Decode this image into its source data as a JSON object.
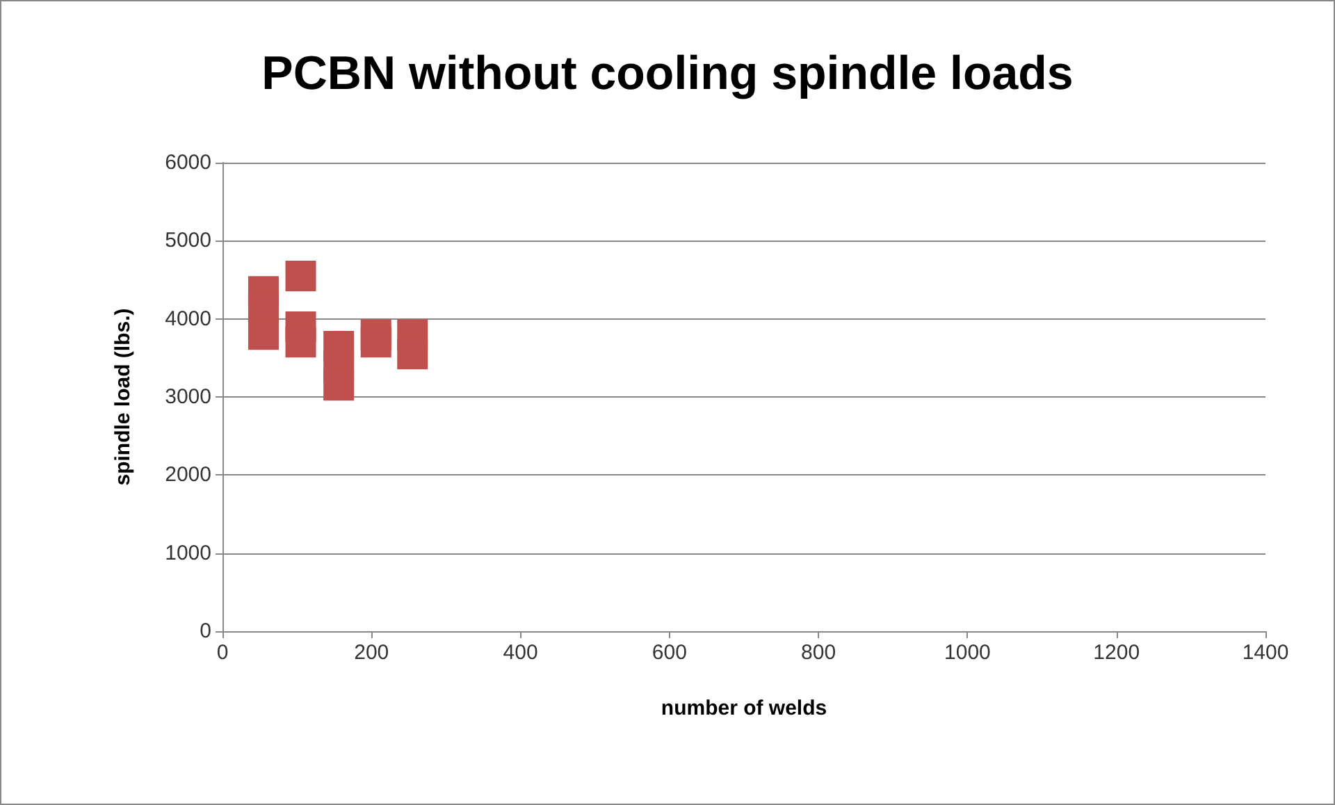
{
  "chart_data": {
    "type": "scatter",
    "title": "PCBN without cooling spindle loads",
    "xlabel": "number of welds",
    "ylabel": "spindle load (lbs.)",
    "x": [
      55,
      55,
      55,
      105,
      105,
      105,
      156,
      156,
      156,
      206,
      206,
      255,
      255
    ],
    "values": [
      4350,
      4150,
      3800,
      4550,
      3900,
      3700,
      3650,
      3400,
      3150,
      3800,
      3700,
      3800,
      3550
    ],
    "color": "#c0504d",
    "marker": "square",
    "grid": "y",
    "xlim": [
      0,
      1400
    ],
    "xticks": [
      0,
      200,
      400,
      600,
      800,
      1000,
      1200,
      1400
    ],
    "ylim": [
      0,
      6000
    ],
    "yticks": [
      0,
      1000,
      2000,
      3000,
      4000,
      5000,
      6000
    ]
  }
}
